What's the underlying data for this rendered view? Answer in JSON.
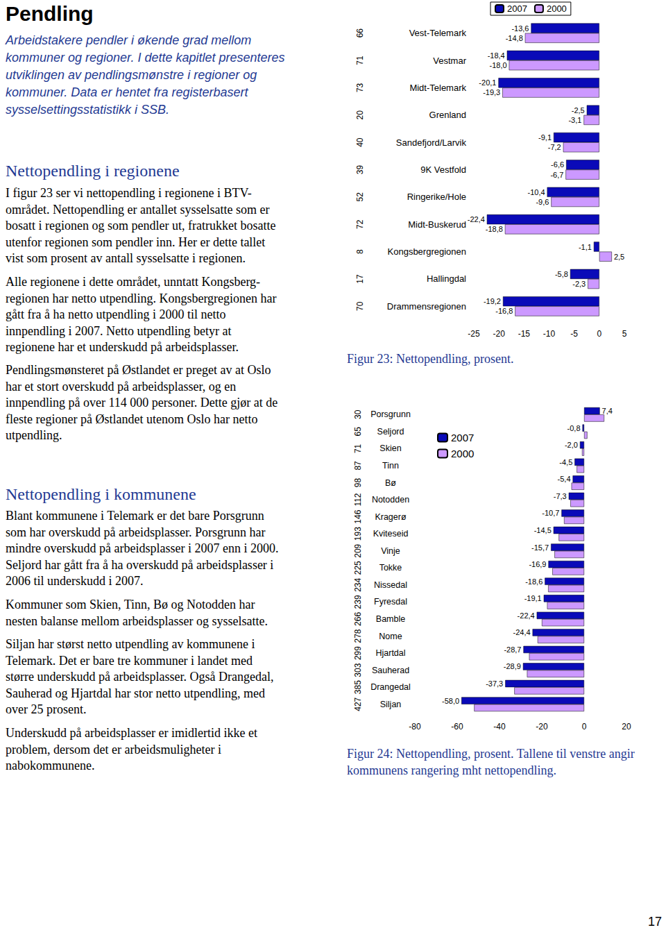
{
  "page": {
    "title": "Pendling",
    "intro": [
      "Arbeidstakere pendler i økende grad mellom",
      "kommuner og regioner.  I dette kapitlet presenteres",
      "utviklingen av pendlingsmønstre i regioner og",
      "kommuner. Data er hentet fra registerbasert",
      "sysselsettingsstatistikk i SSB."
    ],
    "sections": [
      {
        "heading": "Nettopendling i regionene",
        "paragraphs": [
          [
            "I figur 23 ser vi nettopendling i regionene i BTV-",
            "området. Nettopendling er antallet sysselsatte som er",
            "bosatt i regionen og som pendler ut, fratrukket bosatte",
            "utenfor regionen som pendler inn. Her er dette tallet",
            "vist som prosent av antall sysselsatte i regionen."
          ],
          [
            "Alle regionene i dette området, unntatt Kongsberg-",
            "regionen har netto utpendling. Kongsbergregionen har",
            "gått fra å ha netto utpendling i 2000 til netto",
            "innpendling i 2007. Netto utpendling betyr at",
            "regionene har et underskudd på arbeidsplasser."
          ],
          [
            "Pendlingsmønsteret på Østlandet er preget av at Oslo",
            "har et stort overskudd på arbeidsplasser, og en",
            "innpendling på over 114 000 personer. Dette gjør at de",
            "fleste regioner på Østlandet utenom Oslo har netto",
            "utpendling."
          ]
        ]
      },
      {
        "heading": "Nettopendling i kommunene",
        "paragraphs": [
          [
            "Blant kommunene i Telemark er det bare Porsgrunn",
            "som har overskudd på arbeidsplasser. Porsgrunn har",
            "mindre overskudd på arbeidsplasser i 2007 enn i 2000.",
            "Seljord har gått fra å ha overskudd på arbeidsplasser i",
            "2006 til underskudd i 2007."
          ],
          [
            "Kommuner som Skien, Tinn, Bø og Notodden har",
            "nesten balanse mellom arbeidsplasser og sysselsatte."
          ],
          [
            "Siljan har størst netto utpendling av kommunene i",
            "Telemark. Det er bare tre kommuner i landet med",
            "større underskudd på arbeidsplasser. Også Drangedal,",
            "Sauherad og Hjartdal har stor netto utpendling, med",
            "over 25 prosent."
          ],
          [
            "Underskudd på arbeidsplasser er imidlertid ikke et",
            "problem, dersom det er arbeidsmuligheter i",
            "nabokommunene."
          ]
        ]
      }
    ],
    "page_number": "17"
  },
  "chart_data": [
    {
      "type": "bar",
      "orientation": "horizontal",
      "title": "Figur 23: Nettopendling, prosent.",
      "categories": [
        "Vest-Telemark",
        "Vestmar",
        "Midt-Telemark",
        "Grenland",
        "Sandefjord/Larvik",
        "9K Vestfold",
        "Ringerike/Hole",
        "Midt-Buskerud",
        "Kongsbergregionen",
        "Hallingdal",
        "Drammensregionen"
      ],
      "ranks": [
        66,
        71,
        73,
        20,
        40,
        39,
        52,
        72,
        8,
        17,
        70
      ],
      "series": [
        {
          "name": "2007",
          "color": "#0a0ab8",
          "values": [
            -13.6,
            -18.4,
            -20.1,
            -2.5,
            -9.1,
            -6.6,
            -10.4,
            -22.4,
            -1.1,
            -5.8,
            -19.2
          ],
          "value_labels": [
            "-13,6",
            "-18,4",
            "-20,1",
            "-2,5",
            "-9,1",
            "-6,6",
            "-10,4",
            "-22,4",
            "-1,1",
            "-5,8",
            "-19,2"
          ]
        },
        {
          "name": "2000",
          "color": "#cc99ff",
          "values": [
            -14.8,
            -18.0,
            -19.3,
            -3.1,
            -7.2,
            -6.7,
            -9.6,
            -18.8,
            2.5,
            -2.3,
            -16.8
          ],
          "value_labels": [
            "-14,8",
            "-18,0",
            "-19,3",
            "-3,1",
            "-7,2",
            "-6,7",
            "-9,6",
            "-18,8",
            "2,5",
            "-2,3",
            "-16,8"
          ]
        }
      ],
      "xlim": [
        -25,
        5
      ],
      "xticks": [
        -25,
        -20,
        -15,
        -10,
        -5,
        0,
        5
      ],
      "grid": false,
      "legend": "top",
      "data_labels": true
    },
    {
      "type": "bar",
      "orientation": "horizontal",
      "title": "Figur 24: Nettopendling, prosent.  Tallene til venstre angir kommunens rangering mht nettopendling.",
      "categories": [
        "Porsgrunn",
        "Seljord",
        "Skien",
        "Tinn",
        "Bø",
        "Notodden",
        "Kragerø",
        "Kviteseid",
        "Vinje",
        "Tokke",
        "Nissedal",
        "Fyresdal",
        "Bamble",
        "Nome",
        "Hjartdal",
        "Sauherad",
        "Drangedal",
        "Siljan"
      ],
      "ranks": [
        30,
        65,
        71,
        87,
        98,
        112,
        146,
        193,
        209,
        225,
        234,
        239,
        266,
        278,
        299,
        303,
        385,
        427
      ],
      "series": [
        {
          "name": "2007",
          "color": "#0a0ab8",
          "values": [
            7.4,
            -0.8,
            -2.0,
            -4.5,
            -5.4,
            -7.3,
            -10.7,
            -14.5,
            -15.7,
            -16.9,
            -18.6,
            -19.1,
            -22.4,
            -24.4,
            -28.7,
            -28.9,
            -37.3,
            -58.0
          ],
          "value_labels": [
            "7,4",
            "-0,8",
            "-2,0",
            "-4,5",
            "-5,4",
            "-7,3",
            "-10,7",
            "-14,5",
            "-15,7",
            "-16,9",
            "-18,6",
            "-19,1",
            "-22,4",
            "-24,4",
            "-28,7",
            "-28,9",
            "-37,3",
            "-58,0"
          ],
          "data_labels": true
        },
        {
          "name": "2000",
          "color": "#cc99ff",
          "values": [
            9.5,
            1.5,
            -1.0,
            -3.5,
            -6.0,
            -6.5,
            -9.5,
            -12.0,
            -14.0,
            -15.0,
            -17.0,
            -17.5,
            -20.0,
            -22.0,
            -26.0,
            -27.0,
            -33.0,
            -52.0
          ],
          "data_labels": false
        }
      ],
      "xlim": [
        -80,
        20
      ],
      "xticks": [
        -80,
        -60,
        -40,
        -20,
        0,
        20
      ],
      "grid": false,
      "legend": "top-left"
    }
  ]
}
